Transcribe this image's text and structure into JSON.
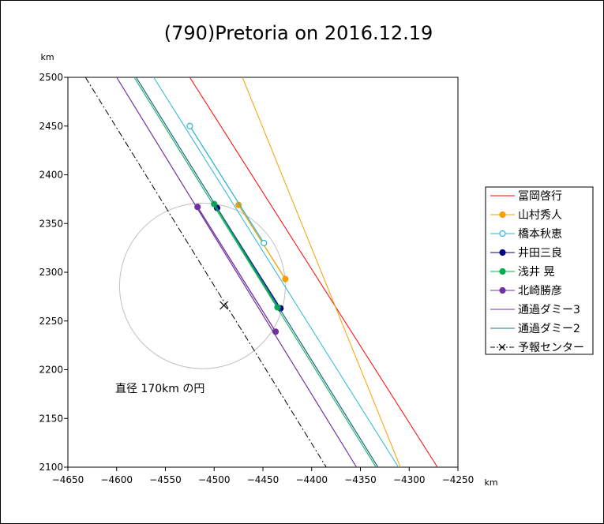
{
  "chart_data": {
    "type": "line",
    "title": "(790)Pretoria on 2016.12.19",
    "xunit": "km",
    "yunit": "km",
    "xlim": [
      -4650,
      -4250
    ],
    "ylim": [
      2100,
      2500
    ],
    "xticks": [
      -4650,
      -4600,
      -4550,
      -4500,
      -4450,
      -4400,
      -4350,
      -4300,
      -4250
    ],
    "yticks": [
      2100,
      2150,
      2200,
      2250,
      2300,
      2350,
      2400,
      2450,
      2500
    ],
    "grid": false,
    "legend_position": "right",
    "annotation": "直径 170km の円",
    "circle": {
      "center": [
        -4512,
        2286
      ],
      "radius": 85,
      "color": "#c0c0c0"
    },
    "series": [
      {
        "name": "冨岡啓行",
        "color": "#ff0000",
        "kind": "line",
        "line": [
          [
            -4525,
            2500
          ],
          [
            -4271,
            2100
          ]
        ]
      },
      {
        "name": "山村秀人",
        "color": "#f5a000",
        "kind": "chord",
        "line": [
          [
            -4471,
            2500
          ],
          [
            -4309,
            2100
          ]
        ],
        "marker": "filled",
        "points": [
          [
            -4475,
            2369
          ],
          [
            -4427,
            2293
          ]
        ]
      },
      {
        "name": "橋本秋恵",
        "color": "#2ab7d6",
        "kind": "chord",
        "line": [
          [
            -4562,
            2500
          ],
          [
            -4311,
            2100
          ]
        ],
        "marker": "open",
        "points": [
          [
            -4525,
            2450
          ],
          [
            -4449,
            2330
          ]
        ]
      },
      {
        "name": "井田三良",
        "color": "#000080",
        "kind": "chord",
        "line": [
          [
            -4580,
            2500
          ],
          [
            -4332,
            2100
          ]
        ],
        "marker": "filled",
        "points": [
          [
            -4497,
            2366
          ],
          [
            -4432,
            2263
          ]
        ]
      },
      {
        "name": "浅井 晃",
        "color": "#00b050",
        "kind": "chord",
        "line": [
          [
            -4582,
            2500
          ],
          [
            -4334,
            2100
          ]
        ],
        "marker": "filled",
        "points": [
          [
            -4500,
            2370
          ],
          [
            -4435,
            2264
          ]
        ]
      },
      {
        "name": "北崎勝彦",
        "color": "#7030a0",
        "kind": "chord",
        "line": [
          [
            -4600,
            2500
          ],
          [
            -4354,
            2100
          ]
        ],
        "marker": "filled",
        "points": [
          [
            -4517,
            2367
          ],
          [
            -4437,
            2239
          ]
        ]
      },
      {
        "name": "通過ダミー3",
        "color": "#7030a0",
        "kind": "line",
        "line": [
          [
            -4600,
            2500
          ],
          [
            -4354,
            2100
          ]
        ]
      },
      {
        "name": "通過ダミー2",
        "color": "#1f6d8a",
        "kind": "line",
        "line": [
          [
            -4580,
            2500
          ],
          [
            -4332,
            2100
          ]
        ]
      },
      {
        "name": "予報センター",
        "color": "#000000",
        "kind": "center",
        "line": [
          [
            -4632,
            2500
          ],
          [
            -4385,
            2100
          ]
        ],
        "point": [
          -4490,
          2266
        ]
      }
    ]
  }
}
